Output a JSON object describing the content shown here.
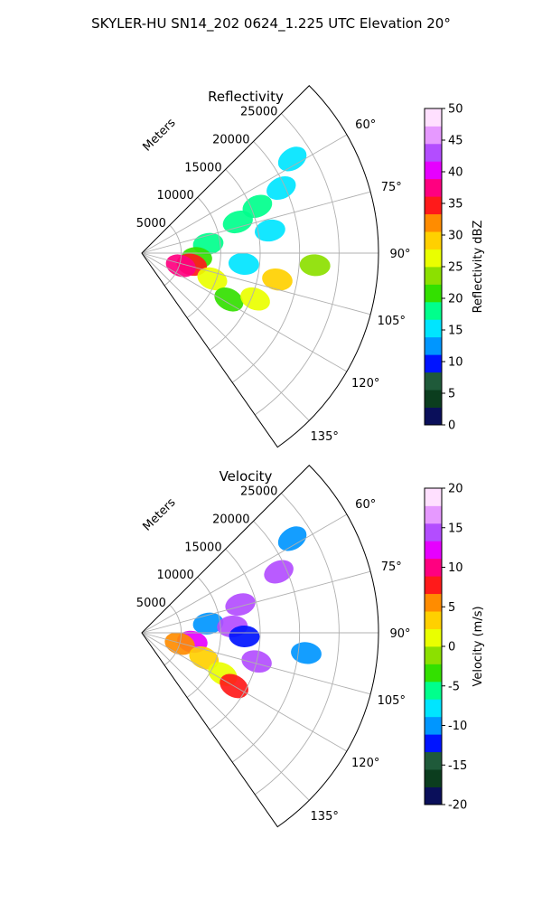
{
  "suptitle": "SKYLER-HU  SN14_202  0624_1.225 UTC Elevation 20°",
  "range_unit_label": "Meters",
  "colors": {
    "grid": "#b0b0b0",
    "axis": "#000000",
    "background": "#ffffff"
  },
  "chart_data": [
    {
      "type": "heatmap",
      "projection": "polar-sector",
      "title": "Reflectivity",
      "azimuth_range_deg": [
        45,
        145
      ],
      "range_max_m": 30000,
      "radial_ticks": [
        5000,
        10000,
        15000,
        20000,
        25000
      ],
      "radial_tick_labels": [
        "5000",
        "10000",
        "15000",
        "20000",
        "25000"
      ],
      "azimuth_ticks": [
        60,
        75,
        90,
        105,
        120,
        135
      ],
      "azimuth_tick_labels": [
        "60°",
        "75°",
        "90°",
        "105°",
        "120°",
        "135°"
      ],
      "grid": true,
      "colorbar": {
        "label": "Reflectivity dBZ",
        "ticks": [
          0,
          5,
          10,
          15,
          20,
          25,
          30,
          35,
          40,
          45,
          50
        ],
        "range": [
          0,
          50
        ],
        "stops": [
          "#0a0f5a",
          "#0b3d1e",
          "#1f5a3a",
          "#0014ff",
          "#0096ff",
          "#00e5ff",
          "#00ff8c",
          "#33e000",
          "#8ce000",
          "#eaff00",
          "#ffd000",
          "#ff8c00",
          "#ff1a1a",
          "#ff0080",
          "#e600ff",
          "#b34dff",
          "#e699ff",
          "#ffe0ff"
        ]
      },
      "echo_cells": [
        {
          "az": 68,
          "r": 15800,
          "value": 17
        },
        {
          "az": 65,
          "r": 19500,
          "value": 15
        },
        {
          "az": 58,
          "r": 22500,
          "value": 15
        },
        {
          "az": 72,
          "r": 12800,
          "value": 18
        },
        {
          "az": 82,
          "r": 8500,
          "value": 19
        },
        {
          "az": 80,
          "r": 16500,
          "value": 16
        },
        {
          "az": 95,
          "r": 7000,
          "value": 20
        },
        {
          "az": 96,
          "r": 13000,
          "value": 16
        },
        {
          "az": 103,
          "r": 6500,
          "value": 34
        },
        {
          "az": 108,
          "r": 5200,
          "value": 38
        },
        {
          "az": 110,
          "r": 9500,
          "value": 27
        },
        {
          "az": 118,
          "r": 12500,
          "value": 22
        },
        {
          "az": 112,
          "r": 15500,
          "value": 25
        },
        {
          "az": 101,
          "r": 17500,
          "value": 28
        },
        {
          "az": 94,
          "r": 22000,
          "value": 24
        }
      ]
    },
    {
      "type": "heatmap",
      "projection": "polar-sector",
      "title": "Velocity",
      "azimuth_range_deg": [
        45,
        145
      ],
      "range_max_m": 30000,
      "radial_ticks": [
        5000,
        10000,
        15000,
        20000,
        25000
      ],
      "radial_tick_labels": [
        "5000",
        "10000",
        "15000",
        "20000",
        "25000"
      ],
      "azimuth_ticks": [
        60,
        75,
        90,
        105,
        120,
        135
      ],
      "azimuth_tick_labels": [
        "60°",
        "75°",
        "90°",
        "105°",
        "120°",
        "135°"
      ],
      "grid": true,
      "colorbar": {
        "label": "Velocity (m/s)",
        "ticks": [
          -20,
          -15,
          -10,
          -5,
          0,
          5,
          10,
          15,
          20
        ],
        "range": [
          -20,
          20
        ],
        "stops": [
          "#0a0f5a",
          "#0b3d1e",
          "#1f5a3a",
          "#0014ff",
          "#0096ff",
          "#00e5ff",
          "#00ff8c",
          "#33e000",
          "#8ce000",
          "#eaff00",
          "#ffd000",
          "#ff8c00",
          "#ff1a1a",
          "#ff0080",
          "#e600ff",
          "#b34dff",
          "#e699ff",
          "#ffe0ff"
        ]
      },
      "echo_cells": [
        {
          "az": 66,
          "r": 19000,
          "value": 15
        },
        {
          "az": 58,
          "r": 22500,
          "value": -11
        },
        {
          "az": 74,
          "r": 13000,
          "value": 14
        },
        {
          "az": 82,
          "r": 8500,
          "value": -11
        },
        {
          "az": 86,
          "r": 11500,
          "value": 15
        },
        {
          "az": 92,
          "r": 13000,
          "value": -12
        },
        {
          "az": 100,
          "r": 6500,
          "value": 12
        },
        {
          "az": 106,
          "r": 5000,
          "value": 6
        },
        {
          "az": 112,
          "r": 8500,
          "value": 3
        },
        {
          "az": 117,
          "r": 11500,
          "value": 2
        },
        {
          "az": 120,
          "r": 13500,
          "value": 8
        },
        {
          "az": 104,
          "r": 15000,
          "value": 14
        },
        {
          "az": 97,
          "r": 21000,
          "value": -11
        }
      ]
    }
  ]
}
